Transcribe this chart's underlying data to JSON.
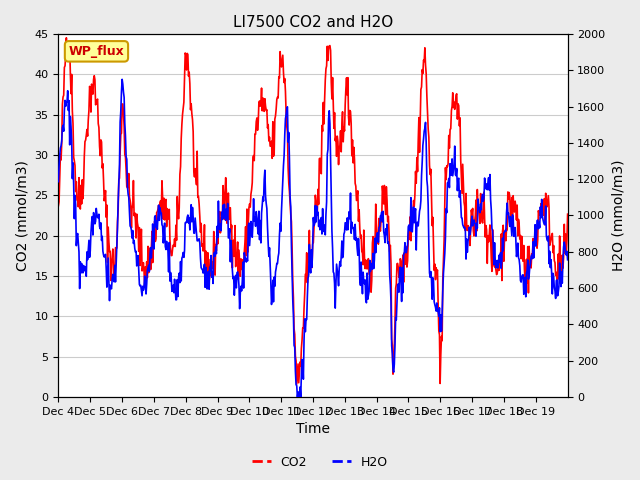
{
  "title": "LI7500 CO2 and H2O",
  "xlabel": "Time",
  "ylabel_left": "CO2 (mmol/m3)",
  "ylabel_right": "H2O (mmol/m3)",
  "ylim_left": [
    0,
    45
  ],
  "ylim_right": [
    0,
    2000
  ],
  "yticks_left": [
    0,
    5,
    10,
    15,
    20,
    25,
    30,
    35,
    40,
    45
  ],
  "yticks_right": [
    0,
    200,
    400,
    600,
    800,
    1000,
    1200,
    1400,
    1600,
    1800,
    2000
  ],
  "xtick_labels": [
    "Dec 4",
    "Dec 5",
    "Dec 6",
    "Dec 7",
    "Dec 8",
    "Dec 9",
    "Dec 10",
    "Dec 11",
    "Dec 12",
    "Dec 13",
    "Dec 14",
    "Dec 15",
    "Dec 16",
    "Dec 17",
    "Dec 18",
    "Dec 19"
  ],
  "xtick_positions": [
    0,
    1,
    2,
    3,
    4,
    5,
    6,
    7,
    8,
    9,
    10,
    11,
    12,
    13,
    14,
    15
  ],
  "co2_color": "#ff0000",
  "h2o_color": "#0000ff",
  "bg_color": "#ebebeb",
  "plot_bg": "#ffffff",
  "legend_box_color": "#ffff99",
  "legend_box_border": "#cc9900",
  "annotation_text": "WP_flux",
  "annotation_color": "#cc0000",
  "title_fontsize": 11,
  "axis_fontsize": 10,
  "tick_fontsize": 8,
  "legend_fontsize": 9,
  "line_width": 1.2,
  "n_days": 16,
  "n_per_day": 48
}
